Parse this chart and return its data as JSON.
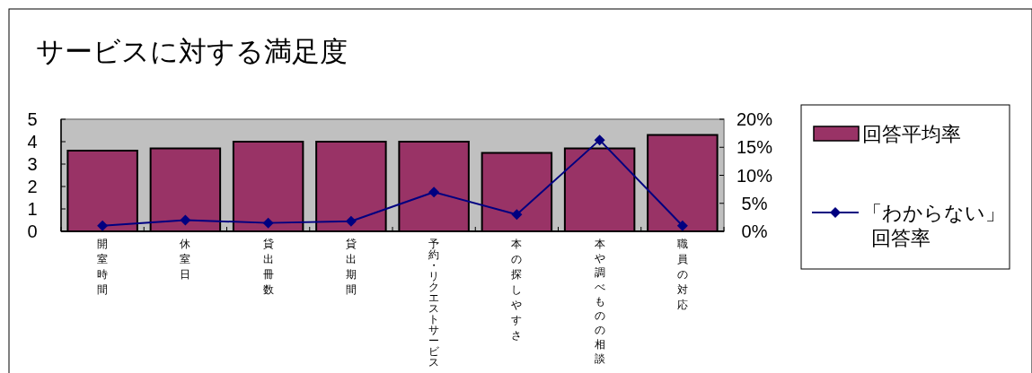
{
  "chart_data": {
    "type": "bar",
    "title": "サービスに対する満足度",
    "categories": [
      "開室時間",
      "休室日",
      "貸出冊数",
      "貸出期間",
      "予約・リクエストサービス",
      "本の探しやすさ",
      "本や調べものの相談",
      "職員の対応"
    ],
    "series": [
      {
        "name": "回答平均率",
        "color": "#993366",
        "values": [
          3.6,
          3.7,
          4.0,
          4.0,
          4.0,
          3.5,
          3.7,
          4.3
        ]
      },
      {
        "name": "「わからない」回答率",
        "type": "line",
        "axis": "y2",
        "color": "#000080",
        "marker": "diamond",
        "values": [
          1.0,
          2.0,
          1.5,
          1.8,
          7.0,
          3.0,
          16.3,
          1.0
        ]
      }
    ],
    "ylim": [
      0,
      5
    ],
    "yticks": [
      0,
      1,
      2,
      3,
      4,
      5
    ],
    "y2lim": [
      0,
      20
    ],
    "y2ticks": [
      {
        "value": 0,
        "label": "0%"
      },
      {
        "value": 5,
        "label": "5%"
      },
      {
        "value": 10,
        "label": "10%"
      },
      {
        "value": 15,
        "label": "15%"
      },
      {
        "value": 20,
        "label": "20%"
      }
    ],
    "legend": "right",
    "grid": false
  }
}
